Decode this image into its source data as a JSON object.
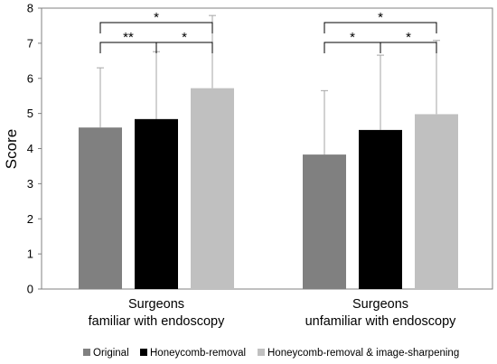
{
  "chart_data": {
    "type": "bar",
    "ylabel": "Score",
    "ylim": [
      0,
      8
    ],
    "yticks": [
      "0",
      "1",
      "2",
      "3",
      "4",
      "5",
      "6",
      "7",
      "8"
    ],
    "groups": [
      {
        "label_line1": "Surgeons",
        "label_line2": "familiar with endoscopy"
      },
      {
        "label_line1": "Surgeons",
        "label_line2": "unfamiliar with endoscopy"
      }
    ],
    "series": [
      {
        "name": "Original",
        "color": "#808080",
        "values": [
          4.6,
          3.83
        ],
        "errors": [
          1.7,
          1.82
        ]
      },
      {
        "name": "Honeycomb-removal",
        "color": "#000000",
        "values": [
          4.84,
          4.53
        ],
        "errors": [
          1.92,
          2.13
        ]
      },
      {
        "name": "Honeycomb-removal & image-sharpening",
        "color": "#c0c0c0",
        "values": [
          5.72,
          4.98
        ],
        "errors": [
          2.07,
          2.1
        ]
      }
    ],
    "significance": [
      {
        "group": 0,
        "from": 0,
        "to": 1,
        "label": "**",
        "level": 0
      },
      {
        "group": 0,
        "from": 1,
        "to": 2,
        "label": "*",
        "level": 0
      },
      {
        "group": 0,
        "from": 0,
        "to": 2,
        "label": "*",
        "level": 1
      },
      {
        "group": 1,
        "from": 0,
        "to": 1,
        "label": "*",
        "level": 0
      },
      {
        "group": 1,
        "from": 1,
        "to": 2,
        "label": "*",
        "level": 0
      },
      {
        "group": 1,
        "from": 0,
        "to": 2,
        "label": "*",
        "level": 1
      }
    ],
    "legend_position": "bottom",
    "grid": false
  }
}
